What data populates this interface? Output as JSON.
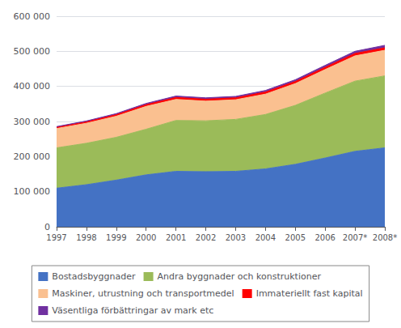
{
  "chart_data": {
    "type": "area",
    "stacked": true,
    "categories": [
      "1997",
      "1998",
      "1999",
      "2000",
      "2001",
      "2002",
      "2003",
      "2004",
      "2005",
      "2006",
      "2007*",
      "2008*"
    ],
    "series": [
      {
        "name": "Bostadsbyggnader",
        "color": "#4472C4",
        "values": [
          110000,
          120000,
          133000,
          148000,
          158000,
          157000,
          158000,
          165000,
          178000,
          196000,
          215000,
          225000
        ]
      },
      {
        "name": "Andra byggnader och konstruktioner",
        "color": "#9BBB59",
        "values": [
          115000,
          118000,
          122000,
          130000,
          145000,
          145000,
          148000,
          155000,
          168000,
          185000,
          200000,
          205000
        ]
      },
      {
        "name": "Maskiner, utrustning och transportmedel",
        "color": "#FAC090",
        "values": [
          55000,
          57000,
          60000,
          65000,
          60000,
          56000,
          56000,
          58000,
          62000,
          67000,
          72000,
          73000
        ]
      },
      {
        "name": "Immateriellt fast kapital",
        "color": "#FF0000",
        "values": [
          3500,
          4000,
          4500,
          5000,
          5500,
          5500,
          5500,
          6000,
          6000,
          6500,
          7000,
          7000
        ]
      },
      {
        "name": "Väsentliga förbättringar av mark etc",
        "color": "#7030A0",
        "values": [
          2000,
          2500,
          3000,
          3500,
          4000,
          4000,
          4000,
          4500,
          5000,
          5500,
          6000,
          7000
        ]
      }
    ],
    "ylim": [
      0,
      600000
    ],
    "yticks": [
      0,
      {
        "value": 100000,
        "label": "100 000"
      },
      {
        "value": 200000,
        "label": "200 000"
      },
      {
        "value": 300000,
        "label": "300 000"
      },
      {
        "value": 400000,
        "label": "400 000"
      },
      {
        "value": 500000,
        "label": "500 000"
      },
      {
        "value": 600000,
        "label": "600 000"
      }
    ],
    "grid": true,
    "legend": "bottom"
  }
}
